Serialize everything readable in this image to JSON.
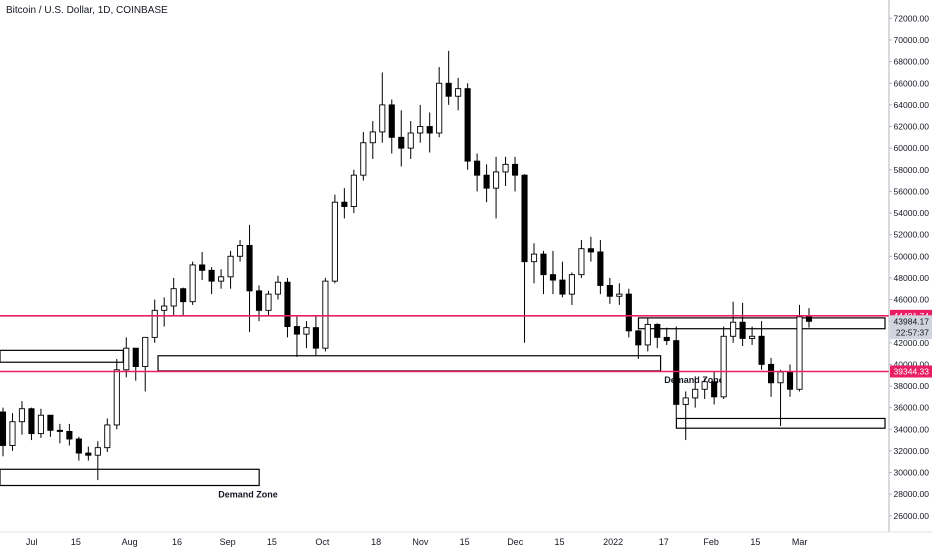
{
  "chart_data": {
    "type": "candlestick",
    "title": "Bitcoin / U.S. Dollar, 1D, COINBASE",
    "xlabel": "",
    "ylabel": "",
    "ylim": [
      24500,
      73700
    ],
    "y_ticks": [
      "72000.00",
      "70000.00",
      "68000.00",
      "66000.00",
      "64000.00",
      "62000.00",
      "60000.00",
      "58000.00",
      "56000.00",
      "54000.00",
      "52000.00",
      "50000.00",
      "48000.00",
      "46000.00",
      "44000.00",
      "42000.00",
      "40000.00",
      "38000.00",
      "36000.00",
      "34000.00",
      "32000.00",
      "30000.00",
      "28000.00",
      "26000.00"
    ],
    "x_ticks": [
      {
        "label": "Jul",
        "date": "2021-07-01"
      },
      {
        "label": "15",
        "date": "2021-07-15"
      },
      {
        "label": "Aug",
        "date": "2021-08-01"
      },
      {
        "label": "16",
        "date": "2021-08-16"
      },
      {
        "label": "Sep",
        "date": "2021-09-01"
      },
      {
        "label": "15",
        "date": "2021-09-15"
      },
      {
        "label": "Oct",
        "date": "2021-10-01"
      },
      {
        "label": "18",
        "date": "2021-10-18"
      },
      {
        "label": "Nov",
        "date": "2021-11-01"
      },
      {
        "label": "15",
        "date": "2021-11-15"
      },
      {
        "label": "Dec",
        "date": "2021-12-01"
      },
      {
        "label": "15",
        "date": "2021-12-15"
      },
      {
        "label": "2022",
        "date": "2022-01-01"
      },
      {
        "label": "17",
        "date": "2022-01-17"
      },
      {
        "label": "Feb",
        "date": "2022-02-01"
      },
      {
        "label": "15",
        "date": "2022-02-15"
      },
      {
        "label": "Mar",
        "date": "2022-03-01"
      }
    ],
    "xlim": [
      "2021-06-21",
      "2022-03-28"
    ],
    "series": [
      {
        "name": "",
        "color_up": "#000000",
        "color_down": "#000000",
        "points": [
          [
            "2021-06-21",
            35600,
            36000,
            31500,
            32500
          ],
          [
            "2021-06-24",
            32500,
            35500,
            32000,
            34700
          ],
          [
            "2021-06-27",
            34700,
            36600,
            33500,
            35900
          ],
          [
            "2021-06-30",
            35900,
            36000,
            33000,
            33600
          ],
          [
            "2021-07-03",
            33600,
            35900,
            33200,
            35300
          ],
          [
            "2021-07-06",
            35300,
            35100,
            33300,
            33900
          ],
          [
            "2021-07-09",
            33900,
            34500,
            32700,
            33800
          ],
          [
            "2021-07-12",
            33800,
            34500,
            32500,
            33100
          ],
          [
            "2021-07-15",
            33100,
            33300,
            31100,
            31800
          ],
          [
            "2021-07-18",
            31800,
            32400,
            31100,
            31600
          ],
          [
            "2021-07-21",
            31600,
            32900,
            29300,
            32300
          ],
          [
            "2021-07-24",
            32300,
            35000,
            31900,
            34400
          ],
          [
            "2021-07-27",
            34400,
            40500,
            34000,
            39500
          ],
          [
            "2021-07-30",
            39500,
            42500,
            38800,
            41500
          ],
          [
            "2021-08-02",
            41500,
            40200,
            38500,
            39800
          ],
          [
            "2021-08-05",
            39800,
            42500,
            37500,
            42500
          ],
          [
            "2021-08-08",
            42500,
            46000,
            42000,
            45000
          ],
          [
            "2021-08-11",
            45000,
            46200,
            43500,
            45400
          ],
          [
            "2021-08-14",
            45400,
            48000,
            44500,
            47000
          ],
          [
            "2021-08-17",
            47000,
            47100,
            44500,
            45800
          ],
          [
            "2021-08-20",
            45800,
            49500,
            45500,
            49200
          ],
          [
            "2021-08-23",
            49200,
            50400,
            47800,
            48700
          ],
          [
            "2021-08-26",
            48700,
            49000,
            46500,
            47700
          ],
          [
            "2021-08-29",
            47700,
            48800,
            47000,
            48100
          ],
          [
            "2021-09-01",
            48100,
            50500,
            47000,
            50000
          ],
          [
            "2021-09-04",
            50000,
            51500,
            49500,
            51000
          ],
          [
            "2021-09-07",
            51000,
            52900,
            43000,
            46800
          ],
          [
            "2021-09-10",
            46800,
            47300,
            44000,
            45000
          ],
          [
            "2021-09-13",
            45000,
            46800,
            44500,
            46500
          ],
          [
            "2021-09-16",
            46500,
            48200,
            46000,
            47600
          ],
          [
            "2021-09-19",
            47600,
            48000,
            42500,
            43500
          ],
          [
            "2021-09-22",
            43500,
            44500,
            40700,
            42800
          ],
          [
            "2021-09-25",
            42800,
            44000,
            41500,
            43400
          ],
          [
            "2021-09-28",
            43400,
            44500,
            40800,
            41500
          ],
          [
            "2021-10-01",
            41500,
            48000,
            41200,
            47700
          ],
          [
            "2021-10-04",
            47700,
            55700,
            47500,
            55000
          ],
          [
            "2021-10-07",
            55000,
            56300,
            53500,
            54600
          ],
          [
            "2021-10-10",
            54600,
            58000,
            54000,
            57500
          ],
          [
            "2021-10-13",
            57500,
            61500,
            57000,
            60500
          ],
          [
            "2021-10-16",
            60500,
            62500,
            59000,
            61500
          ],
          [
            "2021-10-19",
            61500,
            67000,
            60500,
            64000
          ],
          [
            "2021-10-22",
            64000,
            64500,
            59500,
            61000
          ],
          [
            "2021-10-25",
            61000,
            63500,
            58300,
            60000
          ],
          [
            "2021-10-28",
            60000,
            62500,
            59000,
            61400
          ],
          [
            "2021-10-31",
            61400,
            64000,
            60500,
            62000
          ],
          [
            "2021-11-03",
            62000,
            63300,
            59600,
            61400
          ],
          [
            "2021-11-06",
            61400,
            67500,
            61000,
            66000
          ],
          [
            "2021-11-09",
            66000,
            69000,
            64000,
            64800
          ],
          [
            "2021-11-12",
            64800,
            66500,
            63500,
            65500
          ],
          [
            "2021-11-15",
            65500,
            66000,
            58000,
            58800
          ],
          [
            "2021-11-18",
            58800,
            59500,
            56000,
            57500
          ],
          [
            "2021-11-21",
            57500,
            58500,
            55000,
            56300
          ],
          [
            "2021-11-24",
            56300,
            59200,
            53500,
            57800
          ],
          [
            "2021-11-27",
            57800,
            59200,
            56500,
            58500
          ],
          [
            "2021-11-30",
            58500,
            59200,
            56000,
            57500
          ],
          [
            "2021-12-03",
            57500,
            57600,
            42000,
            49500
          ],
          [
            "2021-12-06",
            49500,
            51200,
            47500,
            50200
          ],
          [
            "2021-12-09",
            50200,
            50500,
            46500,
            48300
          ],
          [
            "2021-12-12",
            48300,
            50500,
            46500,
            47800
          ],
          [
            "2021-12-15",
            47800,
            49500,
            46200,
            46500
          ],
          [
            "2021-12-18",
            46500,
            48500,
            45500,
            48300
          ],
          [
            "2021-12-21",
            48300,
            51500,
            48000,
            50700
          ],
          [
            "2021-12-24",
            50700,
            51800,
            49500,
            50400
          ],
          [
            "2021-12-27",
            50400,
            51500,
            46500,
            47300
          ],
          [
            "2021-12-30",
            47300,
            48000,
            45600,
            46300
          ],
          [
            "2022-01-02",
            46300,
            47500,
            45500,
            46500
          ],
          [
            "2022-01-05",
            46500,
            47000,
            42500,
            43100
          ],
          [
            "2022-01-08",
            43100,
            43200,
            40500,
            41800
          ],
          [
            "2022-01-11",
            41800,
            44300,
            41200,
            43700
          ],
          [
            "2022-01-14",
            43700,
            43800,
            41500,
            42500
          ],
          [
            "2022-01-17",
            42500,
            43400,
            41800,
            42200
          ],
          [
            "2022-01-20",
            42200,
            43500,
            35000,
            36300
          ],
          [
            "2022-01-23",
            36300,
            37500,
            33000,
            36900
          ],
          [
            "2022-01-26",
            36900,
            38900,
            36000,
            37700
          ],
          [
            "2022-01-29",
            37700,
            38700,
            36800,
            38400
          ],
          [
            "2022-02-01",
            38400,
            39300,
            36300,
            37000
          ],
          [
            "2022-02-04",
            37000,
            43500,
            36800,
            42600
          ],
          [
            "2022-02-07",
            42600,
            45800,
            42000,
            43900
          ],
          [
            "2022-02-10",
            43900,
            45700,
            41700,
            42400
          ],
          [
            "2022-02-13",
            42400,
            43500,
            41800,
            42600
          ],
          [
            "2022-02-16",
            42600,
            44000,
            39500,
            40000
          ],
          [
            "2022-02-19",
            40000,
            40600,
            37000,
            38300
          ],
          [
            "2022-02-22",
            38300,
            39500,
            34300,
            39300
          ],
          [
            "2022-02-25",
            39300,
            40000,
            37000,
            37700
          ],
          [
            "2022-02-28",
            37700,
            45500,
            37500,
            44400
          ],
          [
            "2022-03-03",
            44400,
            45200,
            43400,
            43984
          ]
        ]
      }
    ],
    "demand_zones": [
      {
        "start": "2021-06-21",
        "end": "2021-07-30",
        "high": 41300,
        "low": 40200,
        "label": ""
      },
      {
        "start": "2021-08-10",
        "end": "2022-01-16",
        "high": 40800,
        "low": 39400,
        "label": "Demand Zone"
      },
      {
        "start": "2021-06-21",
        "end": "2021-09-11",
        "high": 30300,
        "low": 28800,
        "label": "Demand Zone"
      },
      {
        "start": "2022-01-09",
        "end": "2022-03-28",
        "high": 44300,
        "low": 43300,
        "label": ""
      },
      {
        "start": "2022-01-21",
        "end": "2022-03-28",
        "high": 35000,
        "low": 34100,
        "label": ""
      }
    ],
    "horizontal_lines": [
      {
        "value": 44491.74,
        "label": "44491.74",
        "color": "#e91e63"
      },
      {
        "value": 39344.33,
        "label": "39344.33",
        "color": "#e91e63"
      }
    ],
    "last_price": {
      "value": 43984.17,
      "label": "43984.17",
      "countdown": "22:57:37",
      "bg": "#d1d4dc"
    },
    "grid": false,
    "legend": "none"
  }
}
